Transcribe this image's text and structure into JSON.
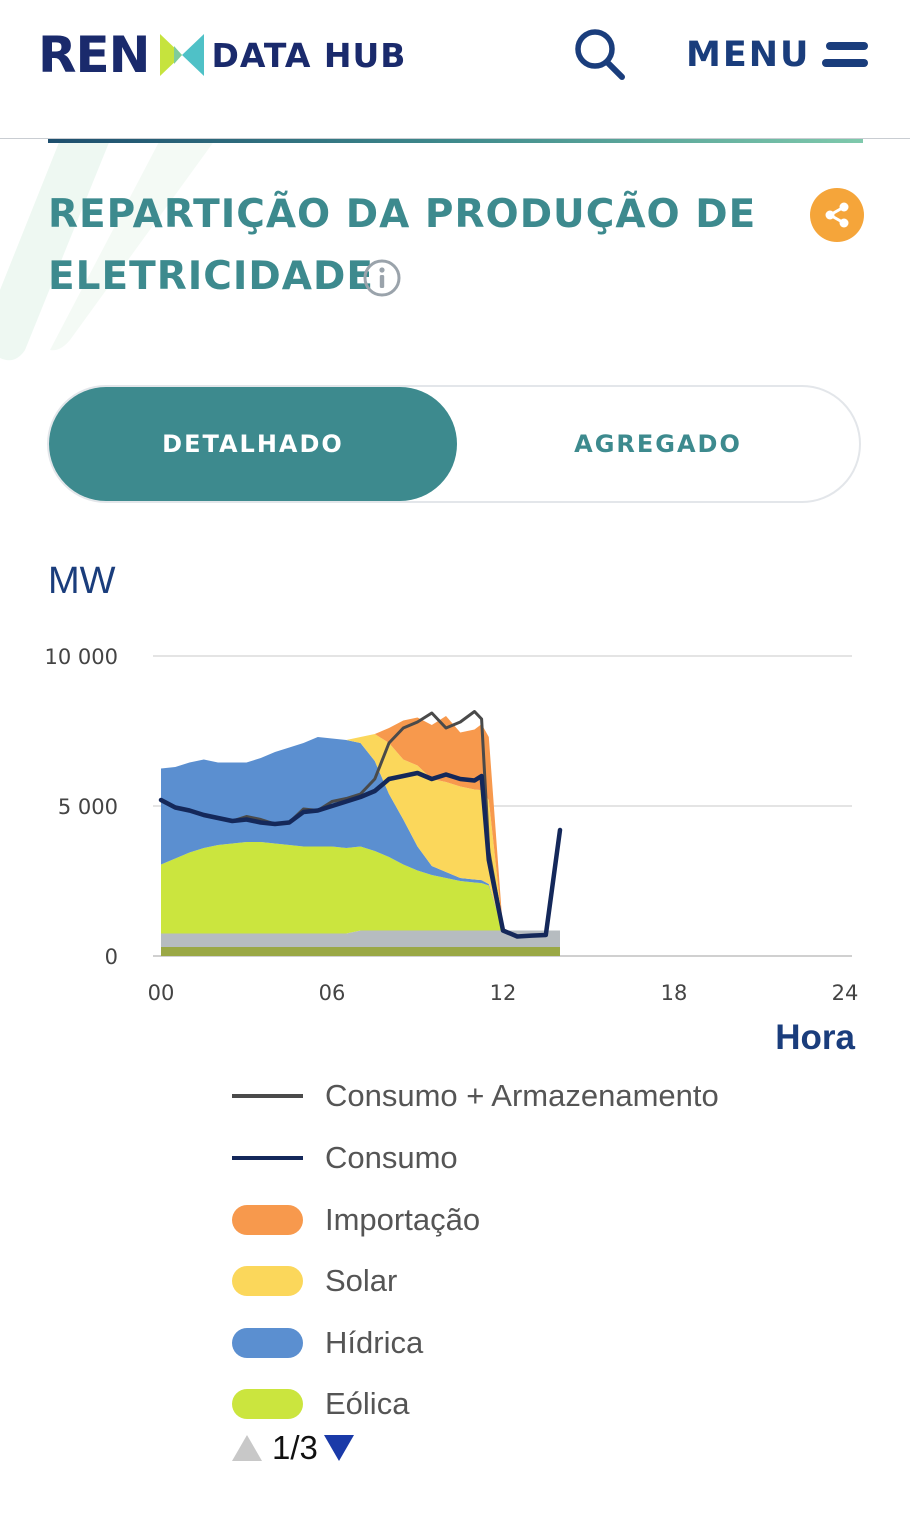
{
  "header": {
    "logo_text": "REN",
    "logo_subtitle": "DATA HUB",
    "search_icon": "search-icon",
    "menu_label": "MENU",
    "menu_icon": "hamburger-icon"
  },
  "section": {
    "title": "REPARTIÇÃO DA PRODUÇÃO DE ELETRICIDADE",
    "info_icon": "info-icon",
    "share_icon": "share-icon"
  },
  "toggle": {
    "options": [
      "DETALHADO",
      "AGREGADO"
    ],
    "active": "DETALHADO"
  },
  "colors": {
    "brand_navy": "#1a2a6c",
    "accent_teal": "#3d8a8e",
    "share_orange": "#f5a53a",
    "consumo_armazenamento": "#4a4a4a",
    "consumo": "#14285a",
    "importacao": "#f7994d",
    "solar": "#fbd75b",
    "hidrica": "#5b8fd0",
    "eolica": "#cbe53e",
    "other_renewables": "#b6bcc0",
    "base": "#9aa845"
  },
  "chart_data": {
    "type": "area",
    "ylabel": "MW",
    "xlabel": "Hora",
    "xlim": [
      0,
      24
    ],
    "ylim": [
      0,
      10000
    ],
    "xticks": [
      "00",
      "06",
      "12",
      "18",
      "24"
    ],
    "yticks": [
      "0",
      "5 000",
      "10 000"
    ],
    "grid": true,
    "legend_position": "bottom",
    "x": [
      0,
      0.5,
      1,
      1.5,
      2,
      2.5,
      3,
      3.5,
      4,
      4.5,
      5,
      5.5,
      6,
      6.5,
      7,
      7.5,
      8,
      8.5,
      9,
      9.5,
      10,
      10.5,
      11,
      11.25,
      11.5,
      12,
      12.5,
      13,
      13.5,
      14
    ],
    "series": [
      {
        "name": "Eólica",
        "kind": "area",
        "values": [
          2300,
          2500,
          2700,
          2850,
          2950,
          3000,
          3050,
          3050,
          3000,
          2950,
          2900,
          2900,
          2900,
          2850,
          2800,
          2650,
          2450,
          2200,
          2000,
          1850,
          1750,
          1650,
          1600,
          1580,
          1500,
          0,
          0,
          0,
          0,
          0
        ]
      },
      {
        "name": "Hídrica",
        "kind": "area",
        "values": [
          3200,
          3050,
          3000,
          2950,
          2750,
          2700,
          2650,
          2800,
          3050,
          3250,
          3450,
          3650,
          3600,
          3600,
          3450,
          3000,
          2100,
          1500,
          800,
          300,
          200,
          100,
          100,
          100,
          50,
          0,
          0,
          0,
          0,
          0
        ]
      },
      {
        "name": "Solar",
        "kind": "area",
        "values": [
          0,
          0,
          0,
          0,
          0,
          0,
          0,
          0,
          0,
          0,
          0,
          0,
          0,
          0,
          200,
          900,
          1700,
          2000,
          2700,
          2900,
          3000,
          3050,
          3000,
          3000,
          2800,
          0,
          0,
          0,
          0,
          0
        ]
      },
      {
        "name": "Importação",
        "kind": "area",
        "values": [
          0,
          0,
          0,
          0,
          0,
          0,
          0,
          0,
          0,
          0,
          0,
          0,
          0,
          0,
          0,
          0,
          500,
          1300,
          1600,
          1800,
          2200,
          1800,
          2000,
          2200,
          2100,
          0,
          0,
          0,
          0,
          0
        ]
      },
      {
        "name": "Consumo + Armazenamento",
        "kind": "line",
        "values": [
          5200,
          4950,
          4850,
          4700,
          4600,
          4500,
          4650,
          4550,
          4400,
          4450,
          4900,
          4850,
          5150,
          5250,
          5400,
          5900,
          7100,
          7600,
          7800,
          8100,
          7600,
          7800,
          8150,
          7900,
          3500,
          850,
          650,
          680,
          700,
          4200
        ]
      },
      {
        "name": "Consumo",
        "kind": "line",
        "values": [
          5200,
          4950,
          4850,
          4700,
          4600,
          4500,
          4550,
          4450,
          4400,
          4450,
          4800,
          4850,
          5000,
          5150,
          5300,
          5500,
          5900,
          6000,
          6100,
          5900,
          6050,
          5900,
          5850,
          6000,
          3200,
          850,
          650,
          680,
          700,
          4200
        ]
      }
    ]
  },
  "legend": {
    "items": [
      {
        "label": "Consumo + Armazenamento",
        "type": "line",
        "color": "#4a4a4a"
      },
      {
        "label": "Consumo",
        "type": "line",
        "color": "#14285a"
      },
      {
        "label": "Importação",
        "type": "swatch",
        "color": "#f7994d"
      },
      {
        "label": "Solar",
        "type": "swatch",
        "color": "#fbd75b"
      },
      {
        "label": "Hídrica",
        "type": "swatch",
        "color": "#5b8fd0"
      },
      {
        "label": "Eólica",
        "type": "swatch",
        "color": "#cbe53e"
      }
    ],
    "page": "1/3"
  }
}
